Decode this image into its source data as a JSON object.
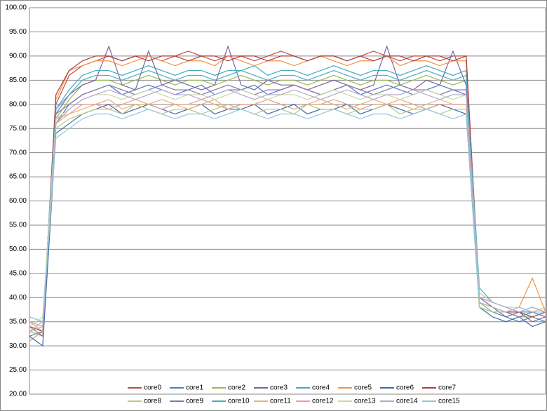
{
  "chart_data": {
    "type": "line",
    "ylim": [
      20,
      100
    ],
    "yticks": [
      {
        "value": 20,
        "label": "20.00"
      },
      {
        "value": 25,
        "label": "25.00"
      },
      {
        "value": 30,
        "label": "30.00"
      },
      {
        "value": 35,
        "label": "35.00"
      },
      {
        "value": 40,
        "label": "40.00"
      },
      {
        "value": 45,
        "label": "45.00"
      },
      {
        "value": 50,
        "label": "50.00"
      },
      {
        "value": 55,
        "label": "55.00"
      },
      {
        "value": 60,
        "label": "60.00"
      },
      {
        "value": 65,
        "label": "65.00"
      },
      {
        "value": 70,
        "label": "70.00"
      },
      {
        "value": 75,
        "label": "75.00"
      },
      {
        "value": 80,
        "label": "80.00"
      },
      {
        "value": 85,
        "label": "85.00"
      },
      {
        "value": 90,
        "label": "90.00"
      },
      {
        "value": 95,
        "label": "95.00"
      },
      {
        "value": 100,
        "label": "100.00"
      }
    ],
    "grid": true,
    "legend": "bottom",
    "series": [
      {
        "name": "core0",
        "color": "#be4b48",
        "values": [
          33,
          34,
          80,
          86,
          88,
          89,
          90,
          89,
          90,
          90,
          89,
          90,
          91,
          90,
          89,
          90,
          90,
          89,
          90,
          91,
          90,
          89,
          90,
          90,
          89,
          90,
          91,
          90,
          89,
          90,
          90,
          89,
          90,
          90,
          40,
          38,
          37,
          36,
          37,
          36
        ]
      },
      {
        "name": "core1",
        "color": "#4a7ebb",
        "values": [
          32,
          33,
          76,
          80,
          82,
          83,
          84,
          82,
          83,
          84,
          83,
          82,
          83,
          84,
          82,
          83,
          83,
          84,
          82,
          83,
          84,
          83,
          82,
          83,
          84,
          82,
          83,
          84,
          83,
          82,
          83,
          84,
          83,
          82,
          38,
          37,
          36,
          35,
          36,
          35
        ]
      },
      {
        "name": "core2",
        "color": "#98b954",
        "values": [
          33,
          32,
          77,
          81,
          84,
          85,
          85,
          84,
          85,
          86,
          85,
          84,
          85,
          85,
          84,
          85,
          86,
          85,
          84,
          85,
          85,
          84,
          85,
          86,
          85,
          84,
          85,
          85,
          84,
          85,
          86,
          85,
          84,
          85,
          39,
          37,
          37,
          36,
          36,
          37
        ]
      },
      {
        "name": "core3",
        "color": "#7d60a0",
        "values": [
          34,
          33,
          78,
          82,
          84,
          85,
          92,
          84,
          83,
          91,
          84,
          85,
          84,
          83,
          84,
          92,
          84,
          83,
          85,
          84,
          84,
          83,
          84,
          85,
          84,
          83,
          84,
          92,
          84,
          83,
          85,
          84,
          91,
          84,
          39,
          38,
          36,
          37,
          35,
          36
        ]
      },
      {
        "name": "core4",
        "color": "#46aac5",
        "values": [
          35,
          34,
          79,
          83,
          86,
          87,
          87,
          86,
          87,
          88,
          87,
          86,
          87,
          87,
          86,
          87,
          87,
          88,
          86,
          87,
          87,
          86,
          87,
          88,
          87,
          86,
          87,
          87,
          86,
          87,
          88,
          87,
          86,
          87,
          42,
          39,
          38,
          37,
          37,
          36
        ]
      },
      {
        "name": "core5",
        "color": "#f69240",
        "values": [
          31,
          33,
          81,
          87,
          88,
          89,
          89,
          88,
          89,
          90,
          89,
          88,
          89,
          89,
          88,
          90,
          89,
          88,
          89,
          89,
          88,
          89,
          90,
          89,
          88,
          89,
          89,
          90,
          88,
          89,
          89,
          88,
          89,
          89,
          40,
          38,
          37,
          38,
          44,
          37
        ]
      },
      {
        "name": "core6",
        "color": "#3e6aa8",
        "values": [
          32,
          30,
          74,
          76,
          78,
          79,
          80,
          78,
          79,
          80,
          79,
          78,
          79,
          80,
          78,
          79,
          79,
          80,
          78,
          79,
          80,
          78,
          79,
          79,
          80,
          78,
          79,
          80,
          79,
          78,
          79,
          80,
          79,
          78,
          38,
          36,
          35,
          36,
          34,
          35
        ]
      },
      {
        "name": "core7",
        "color": "#a8403d",
        "values": [
          34,
          33,
          82,
          87,
          89,
          90,
          90,
          89,
          90,
          89,
          90,
          90,
          89,
          90,
          90,
          89,
          90,
          90,
          89,
          90,
          90,
          89,
          90,
          90,
          89,
          90,
          89,
          90,
          90,
          89,
          90,
          90,
          89,
          90,
          39,
          38,
          37,
          37,
          36,
          37
        ]
      },
      {
        "name": "core8",
        "color": "#b5cb82",
        "values": [
          33,
          34,
          75,
          77,
          78,
          79,
          79,
          78,
          80,
          79,
          78,
          79,
          79,
          78,
          79,
          80,
          79,
          78,
          79,
          79,
          78,
          80,
          79,
          79,
          78,
          79,
          79,
          80,
          78,
          79,
          79,
          78,
          79,
          79,
          38,
          37,
          37,
          36,
          37,
          36
        ]
      },
      {
        "name": "core9",
        "color": "#8a74ad",
        "values": [
          34,
          32,
          78,
          80,
          82,
          83,
          84,
          83,
          82,
          83,
          84,
          83,
          83,
          82,
          83,
          84,
          83,
          82,
          83,
          83,
          84,
          83,
          82,
          83,
          84,
          83,
          82,
          83,
          84,
          83,
          83,
          82,
          83,
          83,
          40,
          38,
          37,
          36,
          37,
          36
        ]
      },
      {
        "name": "core10",
        "color": "#4bacc6",
        "values": [
          36,
          35,
          79,
          82,
          85,
          86,
          86,
          85,
          86,
          87,
          86,
          85,
          86,
          86,
          85,
          86,
          87,
          86,
          85,
          86,
          86,
          85,
          86,
          87,
          86,
          85,
          86,
          86,
          85,
          86,
          87,
          86,
          85,
          86,
          41,
          39,
          38,
          37,
          37,
          38
        ]
      },
      {
        "name": "core11",
        "color": "#e8b27e",
        "values": [
          35,
          34,
          76,
          78,
          79,
          80,
          81,
          79,
          80,
          80,
          81,
          80,
          79,
          80,
          81,
          79,
          80,
          80,
          81,
          80,
          79,
          80,
          81,
          80,
          79,
          80,
          81,
          80,
          80,
          79,
          80,
          81,
          80,
          80,
          39,
          38,
          37,
          38,
          37,
          38
        ]
      },
      {
        "name": "core12",
        "color": "#e4a58f",
        "values": [
          33,
          35,
          77,
          78,
          80,
          80,
          79,
          80,
          81,
          80,
          79,
          80,
          80,
          81,
          80,
          79,
          80,
          80,
          81,
          80,
          79,
          80,
          80,
          81,
          80,
          79,
          80,
          80,
          81,
          80,
          79,
          80,
          80,
          80,
          40,
          39,
          38,
          37,
          38,
          37
        ]
      },
      {
        "name": "core13",
        "color": "#c9d9a6",
        "values": [
          34,
          36,
          77,
          79,
          81,
          82,
          82,
          81,
          82,
          83,
          82,
          81,
          82,
          82,
          81,
          82,
          83,
          82,
          81,
          82,
          82,
          81,
          82,
          83,
          82,
          81,
          82,
          82,
          81,
          82,
          83,
          82,
          81,
          82,
          41,
          39,
          38,
          38,
          37,
          38
        ]
      },
      {
        "name": "core14",
        "color": "#b4a7cc",
        "values": [
          35,
          33,
          76,
          79,
          81,
          82,
          83,
          82,
          81,
          82,
          83,
          82,
          82,
          81,
          82,
          83,
          82,
          81,
          82,
          82,
          83,
          82,
          81,
          82,
          83,
          82,
          81,
          82,
          82,
          83,
          82,
          81,
          82,
          82,
          40,
          39,
          38,
          37,
          38,
          37
        ]
      },
      {
        "name": "core15",
        "color": "#93c6dc",
        "values": [
          36,
          35,
          73,
          75,
          77,
          78,
          78,
          77,
          78,
          79,
          78,
          77,
          78,
          78,
          77,
          78,
          79,
          78,
          77,
          78,
          78,
          77,
          78,
          79,
          78,
          77,
          78,
          78,
          77,
          78,
          79,
          78,
          77,
          78,
          39,
          38,
          37,
          38,
          37,
          37
        ]
      }
    ]
  }
}
